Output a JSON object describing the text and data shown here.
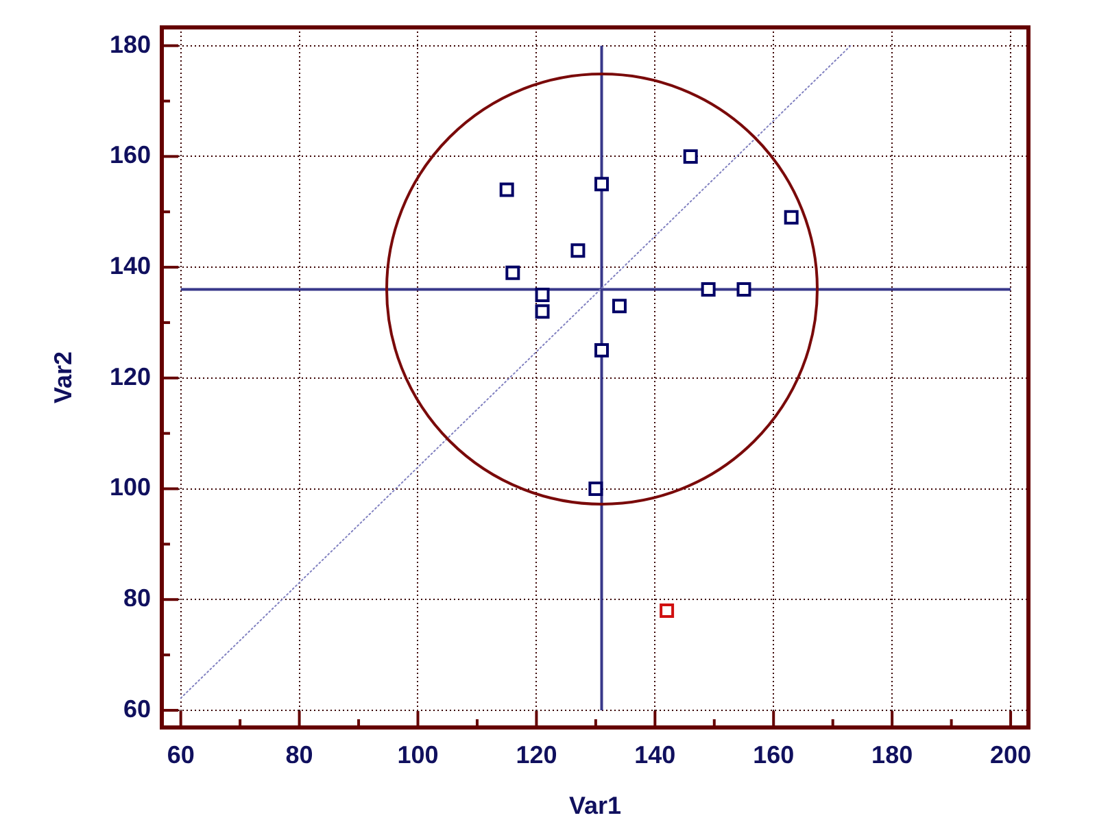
{
  "chart_data": {
    "type": "scatter",
    "xlabel": "Var1",
    "ylabel": "Var2",
    "xlim": [
      56.8,
      203
    ],
    "ylim": [
      56.9,
      183.3
    ],
    "xticks": [
      60,
      {
        "value": 70,
        "label": null
      },
      80,
      {
        "value": 90,
        "label": null
      },
      100,
      {
        "value": 110,
        "label": null
      },
      120,
      {
        "value": 130,
        "label": null
      },
      140,
      {
        "value": 150,
        "label": null
      },
      160,
      {
        "value": 170,
        "label": null
      },
      180,
      {
        "value": 190,
        "label": null
      },
      200
    ],
    "yticks": [
      60,
      {
        "value": 70,
        "label": null
      },
      80,
      {
        "value": 90,
        "label": null
      },
      100,
      {
        "value": 110,
        "label": null
      },
      120,
      {
        "value": 130,
        "label": null
      },
      140,
      {
        "value": 150,
        "label": null
      },
      160,
      {
        "value": 170,
        "label": null
      },
      180
    ],
    "grid": true,
    "legend": false,
    "marker": "square",
    "ref_lines": [
      {
        "axis": "x",
        "value": 131,
        "color": "#38388a"
      },
      {
        "axis": "y",
        "value": 136,
        "color": "#38388a"
      }
    ],
    "series": [
      {
        "color": "#000066",
        "x": [
          115,
          116,
          121,
          121,
          127,
          131,
          131,
          130,
          134,
          146,
          149,
          155,
          163
        ],
        "values": [
          154,
          139,
          135,
          132,
          143,
          155,
          125,
          100,
          133,
          160,
          136,
          136,
          149
        ]
      },
      {
        "color": "#d01010",
        "x": [
          142
        ],
        "values": [
          78
        ]
      },
      {
        "type": "line",
        "color": "#8080c0",
        "marker": "none",
        "line_style": "dotted",
        "x": [
          60,
          173
        ],
        "values": [
          62.2,
          180
        ]
      }
    ]
  }
}
